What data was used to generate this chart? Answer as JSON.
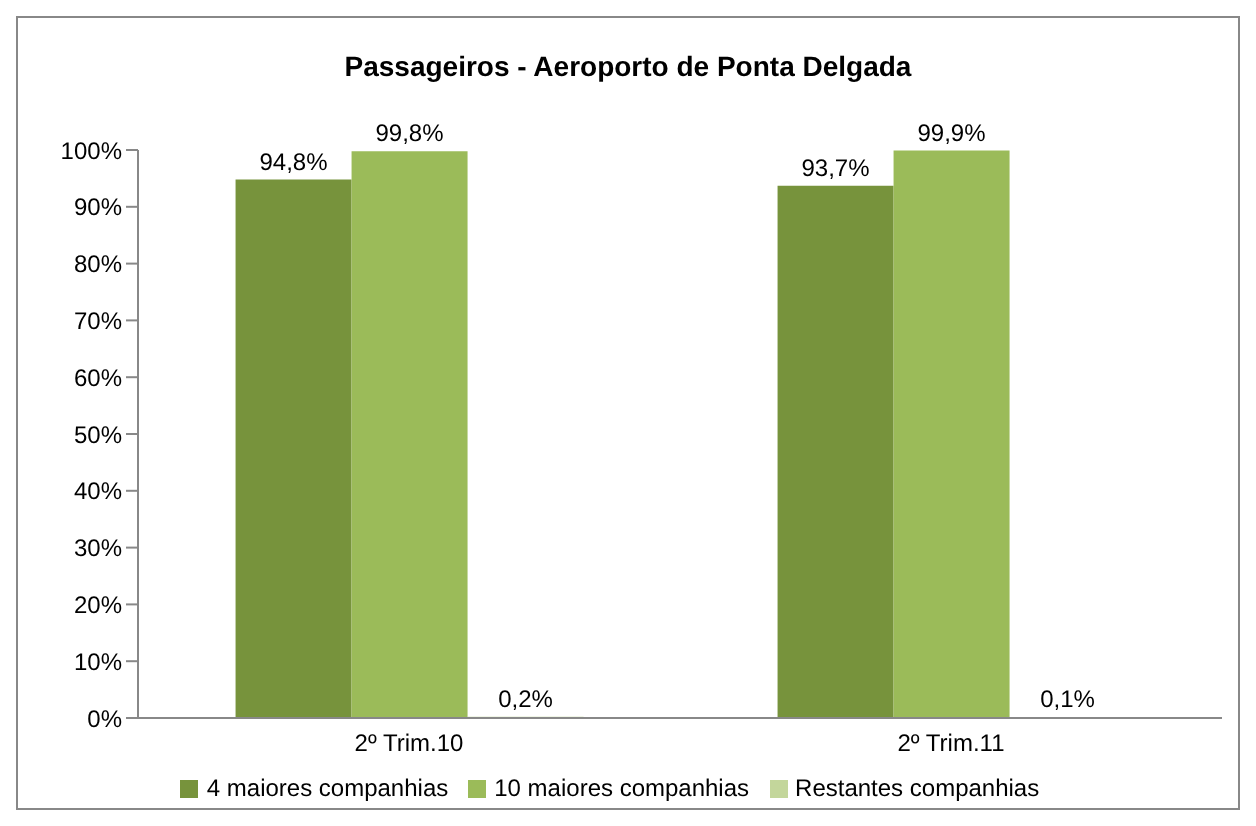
{
  "chart_data": {
    "type": "bar",
    "title": "Passageiros - Aeroporto de Ponta Delgada",
    "categories": [
      "2º Trim.10",
      "2º Trim.11"
    ],
    "series": [
      {
        "name": "4 maiores companhias",
        "color": "#77933c",
        "values": [
          94.8,
          93.7
        ],
        "value_labels": [
          "94,8%",
          "93,7%"
        ]
      },
      {
        "name": "10 maiores companhias",
        "color": "#9bbb59",
        "values": [
          99.8,
          99.9
        ],
        "value_labels": [
          "99,8%",
          "99,9%"
        ]
      },
      {
        "name": "Restantes companhias",
        "color": "#c3d69b",
        "values": [
          0.2,
          0.1
        ],
        "value_labels": [
          "0,2%",
          "0,1%"
        ]
      }
    ],
    "ylim": [
      0,
      100
    ],
    "yticks": [
      {
        "value": 0,
        "label": "0%"
      },
      {
        "value": 10,
        "label": "10%"
      },
      {
        "value": 20,
        "label": "20%"
      },
      {
        "value": 30,
        "label": "30%"
      },
      {
        "value": 40,
        "label": "40%"
      },
      {
        "value": 50,
        "label": "50%"
      },
      {
        "value": 60,
        "label": "60%"
      },
      {
        "value": 70,
        "label": "70%"
      },
      {
        "value": 80,
        "label": "80%"
      },
      {
        "value": 90,
        "label": "90%"
      },
      {
        "value": 100,
        "label": "100%"
      }
    ],
    "grid": false,
    "legend": "bottom"
  }
}
